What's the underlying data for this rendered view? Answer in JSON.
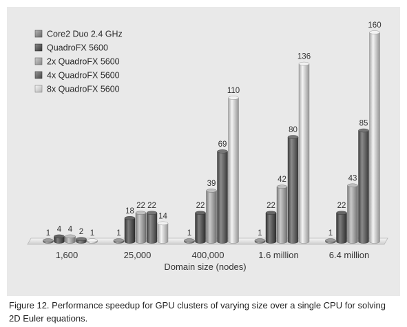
{
  "chart_data": {
    "type": "bar",
    "categories": [
      "1,600",
      "25,000",
      "400,000",
      "1.6 million",
      "6.4 million"
    ],
    "series": [
      {
        "name": "Core2 Duo 2.4 GHz",
        "values": [
          1,
          1,
          1,
          1,
          1
        ]
      },
      {
        "name": "QuadroFX 5600",
        "values": [
          4,
          18,
          22,
          22,
          22
        ]
      },
      {
        "name": "2x QuadroFX 5600",
        "values": [
          4,
          22,
          39,
          42,
          43
        ]
      },
      {
        "name": "4x QuadroFX 5600",
        "values": [
          2,
          22,
          69,
          80,
          85
        ]
      },
      {
        "name": "8x QuadroFX 5600",
        "values": [
          1,
          14,
          110,
          136,
          160
        ]
      }
    ],
    "series_colors": [
      "#8c8c8c",
      "#4a4a4a",
      "#b4b4b4",
      "#5e5e5e",
      "#f0f0f0"
    ],
    "title": "",
    "xlabel": "Domain size (nodes)",
    "ylabel": "",
    "ylim": [
      0,
      160
    ],
    "grid": false,
    "legend_position": "top-left",
    "style": "3d-cylinders"
  },
  "caption": "Figure 12. Performance speedup for GPU clusters of varying size over a single CPU for solving 2D Euler equations."
}
